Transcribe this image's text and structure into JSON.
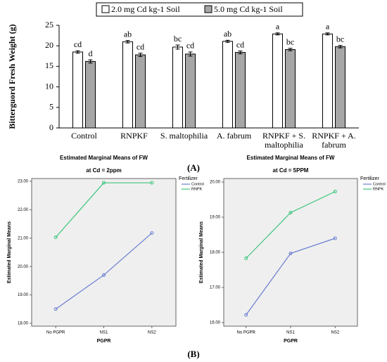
{
  "panel_labels": [
    "(A)",
    "(B)"
  ],
  "chart_data": [
    {
      "type": "bar",
      "ylabel": "Bitterguord Fresh Weight (g)",
      "categories": [
        "Control",
        "RNPKF",
        "S. maltophilia",
        "A. fabrum",
        "RNPKF + S. maltophilia",
        "RNPKF + A. fabrum"
      ],
      "series": [
        {
          "name": "2.0 mg Cd kg-1 Soil",
          "color": "#ffffff",
          "values": [
            18.5,
            21.0,
            19.7,
            21.1,
            22.9,
            22.9
          ],
          "errors": [
            0.3,
            0.3,
            0.5,
            0.25,
            0.25,
            0.25
          ],
          "letters": [
            "cd",
            "ab",
            "bc",
            "ab",
            "a",
            "a"
          ]
        },
        {
          "name": "5.0 mg Cd kg-1 Soil",
          "color": "#a6a6a6",
          "values": [
            16.2,
            17.8,
            18.0,
            18.4,
            19.1,
            19.8
          ],
          "errors": [
            0.4,
            0.4,
            0.5,
            0.35,
            0.3,
            0.3
          ],
          "letters": [
            "d",
            "cd",
            "cd",
            "cd",
            "bc",
            "bc"
          ]
        }
      ],
      "ylim": [
        0,
        25
      ],
      "yticks": [
        0,
        5,
        10,
        15,
        20,
        25
      ]
    },
    {
      "type": "line",
      "title": "Estimated Marginal Means of FW",
      "subtitle": "at Cd = 2ppm",
      "xlabel": "PGPR",
      "ylabel": "Estimated Marginal Means",
      "legend_title": "Fertilizer",
      "categories": [
        "No PGPR",
        "NS1",
        "NS2"
      ],
      "series": [
        {
          "name": "Control",
          "color": "#6a7fd2",
          "values": [
            18.5,
            19.7,
            21.18
          ]
        },
        {
          "name": "RNPK",
          "color": "#3cc47c",
          "values": [
            21.03,
            22.95,
            22.95
          ]
        }
      ],
      "ylim": [
        17.9,
        23.1
      ],
      "yticks": [
        {
          "value": 18,
          "label": "18.00"
        },
        {
          "value": 19,
          "label": "19.00"
        },
        {
          "value": 20,
          "label": "20.00"
        },
        {
          "value": 21,
          "label": "21.00"
        },
        {
          "value": 22,
          "label": "22.00"
        },
        {
          "value": 23,
          "label": "23.00"
        }
      ]
    },
    {
      "type": "line",
      "title": "Estimated Marginal Means of FW",
      "subtitle": "at Cd = 5PPM",
      "xlabel": "PGPR",
      "ylabel": "Estimated Marginal Means",
      "legend_title": "Fertilizer",
      "categories": [
        "No PGPR",
        "NS1",
        "NS2"
      ],
      "series": [
        {
          "name": "Control",
          "color": "#6a7fd2",
          "values": [
            16.22,
            17.97,
            18.4
          ]
        },
        {
          "name": "RNPK",
          "color": "#3cc47c",
          "values": [
            17.83,
            19.13,
            19.73
          ]
        }
      ],
      "ylim": [
        15.9,
        20.1
      ],
      "yticks": [
        {
          "value": 16,
          "label": "16.00"
        },
        {
          "value": 17,
          "label": "17.00"
        },
        {
          "value": 18,
          "label": "18.00"
        },
        {
          "value": 19,
          "label": "19.00"
        },
        {
          "value": 20,
          "label": "20.00"
        }
      ]
    }
  ]
}
